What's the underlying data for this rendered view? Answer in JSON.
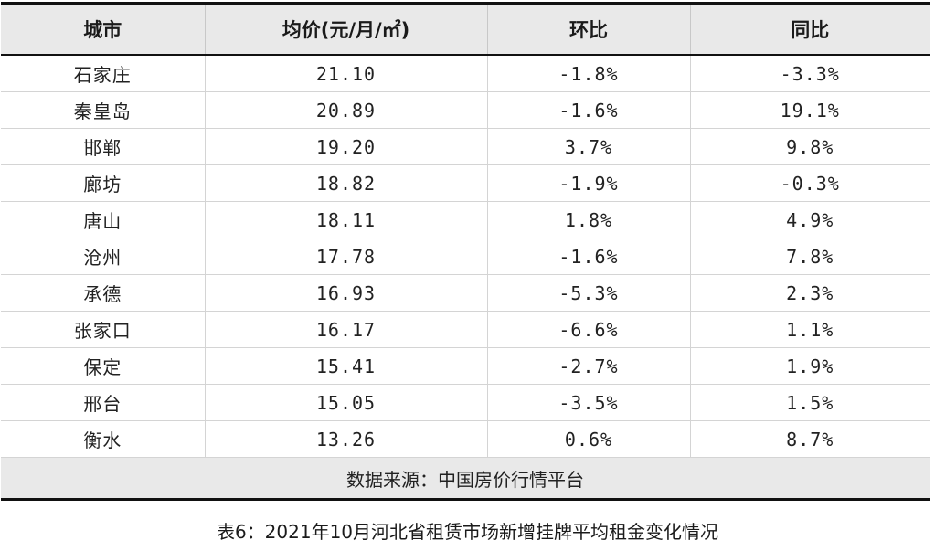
{
  "table": {
    "headers": [
      "城市",
      "均价(元/月/㎡)",
      "环比",
      "同比"
    ],
    "rows": [
      {
        "city": "石家庄",
        "price": "21.10",
        "mom": "-1.8%",
        "yoy": "-3.3%"
      },
      {
        "city": "秦皇岛",
        "price": "20.89",
        "mom": "-1.6%",
        "yoy": "19.1%"
      },
      {
        "city": "邯郸",
        "price": "19.20",
        "mom": "3.7%",
        "yoy": "9.8%"
      },
      {
        "city": "廊坊",
        "price": "18.82",
        "mom": "-1.9%",
        "yoy": "-0.3%"
      },
      {
        "city": "唐山",
        "price": "18.11",
        "mom": "1.8%",
        "yoy": "4.9%"
      },
      {
        "city": "沧州",
        "price": "17.78",
        "mom": "-1.6%",
        "yoy": "7.8%"
      },
      {
        "city": "承德",
        "price": "16.93",
        "mom": "-5.3%",
        "yoy": "2.3%"
      },
      {
        "city": "张家口",
        "price": "16.17",
        "mom": "-6.6%",
        "yoy": "1.1%"
      },
      {
        "city": "保定",
        "price": "15.41",
        "mom": "-2.7%",
        "yoy": "1.9%"
      },
      {
        "city": "邢台",
        "price": "15.05",
        "mom": "-3.5%",
        "yoy": "1.5%"
      },
      {
        "city": "衡水",
        "price": "13.26",
        "mom": "0.6%",
        "yoy": "8.7%"
      }
    ],
    "source": "数据来源：中国房价行情平台"
  },
  "caption": "表6：2021年10月河北省租赁市场新增挂牌平均租金变化情况"
}
